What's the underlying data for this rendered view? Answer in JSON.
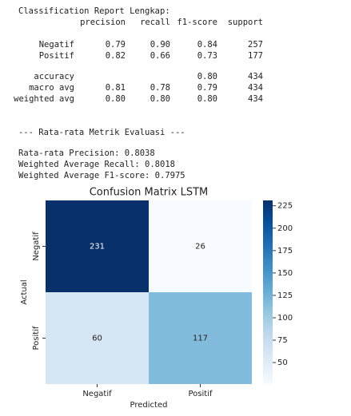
{
  "report": {
    "title": "Classification Report Lengkap:",
    "header": [
      "precision",
      "recall",
      "f1-score",
      "support"
    ],
    "rows": [
      {
        "label": "Negatif",
        "precision": "0.79",
        "recall": "0.90",
        "f1-score": "0.84",
        "support": "257"
      },
      {
        "label": "Positif",
        "precision": "0.82",
        "recall": "0.66",
        "f1-score": "0.73",
        "support": "177"
      },
      {
        "label": "accuracy",
        "f1-score": "0.80",
        "support": "434"
      },
      {
        "label": "macro avg",
        "precision": "0.81",
        "recall": "0.78",
        "f1-score": "0.79",
        "support": "434"
      },
      {
        "label": "weighted avg",
        "precision": "0.80",
        "recall": "0.80",
        "f1-score": "0.80",
        "support": "434"
      }
    ],
    "section": "--- Rata-rata Metrik Evaluasi ---",
    "lines": [
      "Rata-rata Precision: 0.8038",
      "Weighted Average Recall: 0.8018",
      "Weighted Average F1-score: 0.7975"
    ]
  },
  "chart_data": {
    "type": "heatmap",
    "title": "Confusion Matrix LSTM",
    "xlabel": "Predicted",
    "ylabel": "Actual",
    "x_categories": [
      "Negatif",
      "Positif"
    ],
    "y_categories": [
      "Negatif",
      "Positif"
    ],
    "values": [
      [
        231,
        26
      ],
      [
        60,
        117
      ]
    ],
    "clim": [
      26,
      231
    ],
    "cticks": [
      50,
      75,
      100,
      125,
      150,
      175,
      200,
      225
    ],
    "colormap": [
      "#f7fbff",
      "#deebf7",
      "#c6dbef",
      "#9ecae1",
      "#6baed6",
      "#4292c6",
      "#2171b5",
      "#08519c",
      "#08306b"
    ]
  }
}
